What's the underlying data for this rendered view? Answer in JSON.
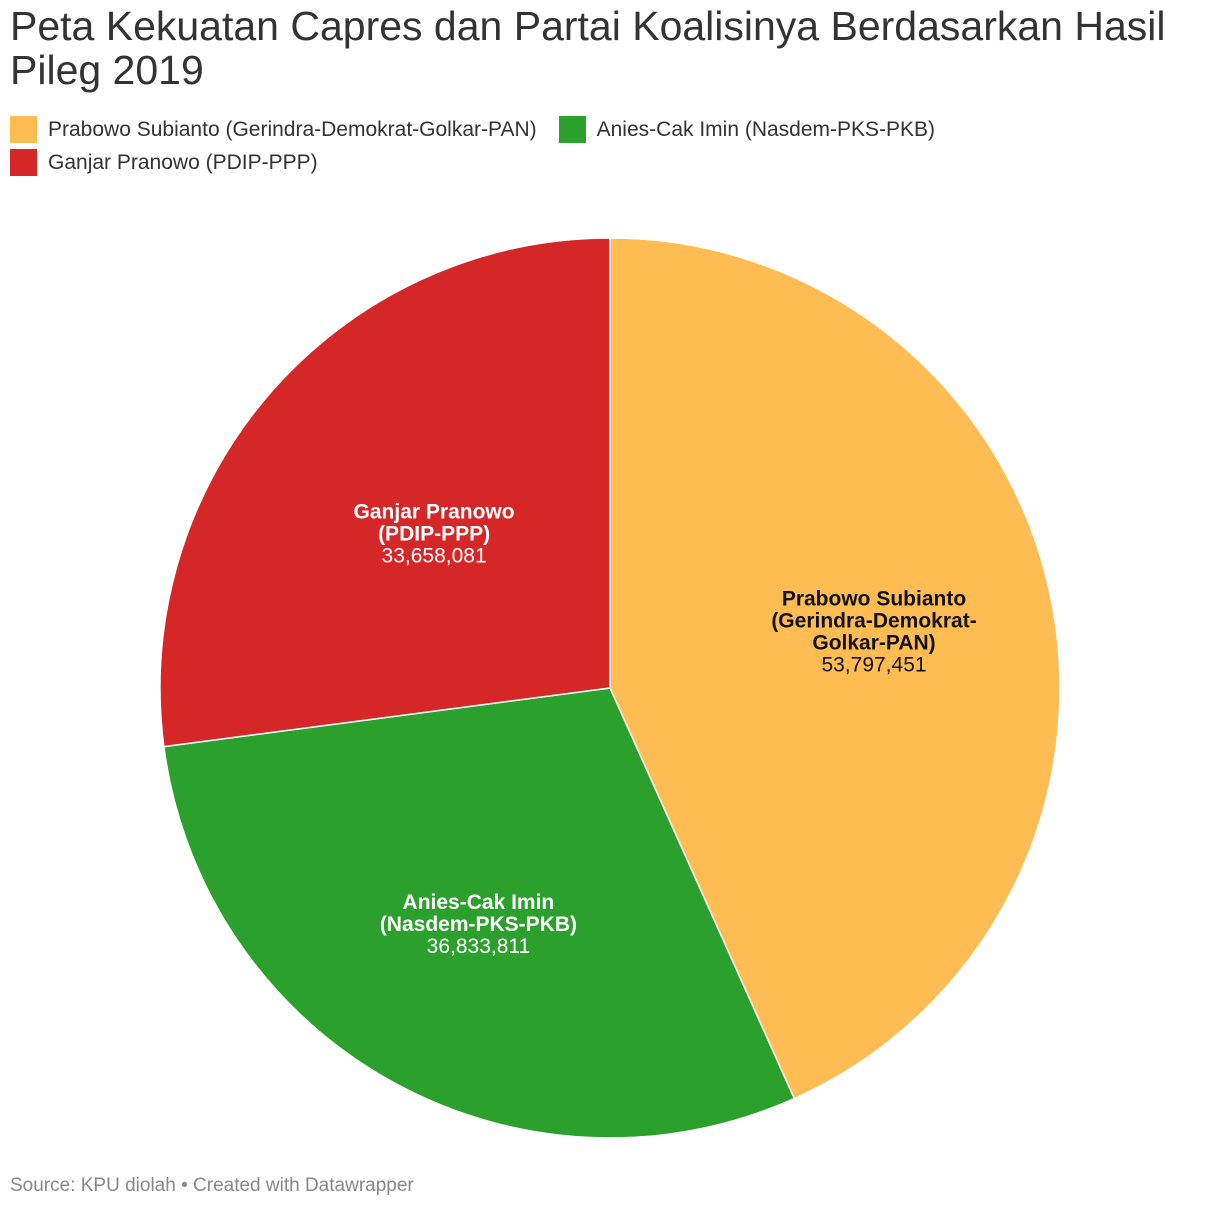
{
  "title": "Peta Kekuatan Capres dan Partai Koalisinya Berdasarkan Hasil Pileg 2019",
  "source": "Source: KPU diolah • Created with Datawrapper",
  "chart_data": {
    "type": "pie",
    "title": "Peta Kekuatan Capres dan Partai Koalisinya Berdasarkan Hasil Pileg 2019",
    "legend_placement": "top-left",
    "slices": [
      {
        "name": "Prabowo Subianto (Gerindra-Demokrat-Golkar-PAN)",
        "label_lines": [
          "Prabowo Subianto",
          "(Gerindra-Demokrat-",
          "Golkar-PAN)"
        ],
        "value": 53797451,
        "value_label": "53,797,451",
        "color": "#FFBC52",
        "label_color": "#111111"
      },
      {
        "name": "Anies-Cak Imin (Nasdem-PKS-PKB)",
        "label_lines": [
          "Anies-Cak Imin",
          "(Nasdem-PKS-PKB)"
        ],
        "value": 36833811,
        "value_label": "36,833,811",
        "color": "#2CA02C",
        "label_color": "#ffffff"
      },
      {
        "name": "Ganjar Pranowo (PDIP-PPP)",
        "label_lines": [
          "Ganjar Pranowo",
          "(PDIP-PPP)"
        ],
        "value": 33658081,
        "value_label": "33,658,081",
        "color": "#D62728",
        "label_color": "#ffffff"
      }
    ]
  }
}
